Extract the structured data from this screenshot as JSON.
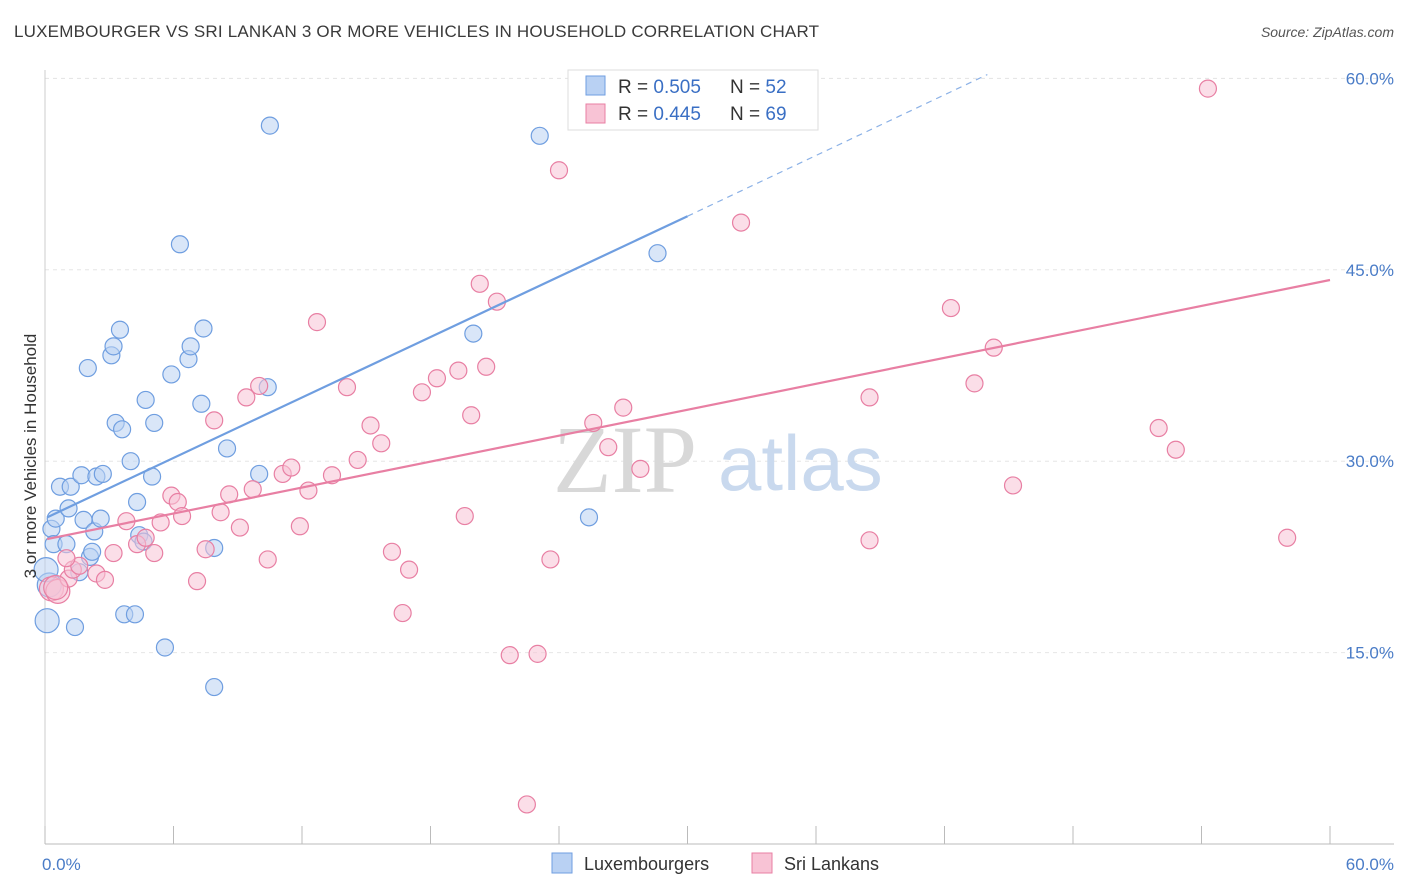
{
  "header": {
    "title": "LUXEMBOURGER VS SRI LANKAN 3 OR MORE VEHICLES IN HOUSEHOLD CORRELATION CHART",
    "source": "Source: ZipAtlas.com"
  },
  "watermark": {
    "zip": "ZIP",
    "atlas": "atlas"
  },
  "chart_data": {
    "type": "scatter",
    "title": "LUXEMBOURGER VS SRI LANKAN 3 OR MORE VEHICLES IN HOUSEHOLD CORRELATION CHART",
    "xlabel": "",
    "ylabel": "3 or more Vehicles in Household",
    "xlim": [
      0,
      60
    ],
    "ylim": [
      0,
      63
    ],
    "x_tick_labels": [
      "0.0%",
      "60.0%"
    ],
    "y_ticks": [
      15,
      30,
      45,
      60
    ],
    "y_tick_labels": [
      "15.0%",
      "30.0%",
      "45.0%",
      "60.0%"
    ],
    "grid": true,
    "legend_position": "bottom-center",
    "stats_box": [
      {
        "r_label": "R = ",
        "r_value": "0.505",
        "n_label": "N = ",
        "n_value": "52"
      },
      {
        "r_label": "R = ",
        "r_value": "0.445",
        "n_label": "N = ",
        "n_value": "69"
      }
    ],
    "series": [
      {
        "name": "Luxembourgers",
        "color": "#6f9ee0",
        "fill": "#b9d1f3",
        "trend": {
          "x0": 0.1,
          "y0": 25.6,
          "x1": 30.0,
          "y1": 49.2,
          "dash_to_x": 44.0,
          "dash_to_y": 60.3
        },
        "points": [
          [
            0.1,
            17.5
          ],
          [
            0.2,
            20.3
          ],
          [
            0.3,
            24.7
          ],
          [
            0.4,
            23.5
          ],
          [
            0.5,
            25.5
          ],
          [
            0.7,
            28.0
          ],
          [
            1.0,
            23.5
          ],
          [
            1.1,
            26.3
          ],
          [
            1.2,
            28.0
          ],
          [
            1.4,
            17.0
          ],
          [
            1.6,
            21.3
          ],
          [
            1.7,
            28.9
          ],
          [
            1.8,
            25.4
          ],
          [
            2.0,
            37.3
          ],
          [
            2.1,
            22.5
          ],
          [
            2.2,
            22.9
          ],
          [
            2.3,
            24.5
          ],
          [
            2.4,
            28.8
          ],
          [
            2.6,
            25.5
          ],
          [
            2.7,
            29.0
          ],
          [
            3.1,
            38.3
          ],
          [
            3.2,
            39.0
          ],
          [
            3.3,
            33.0
          ],
          [
            3.5,
            40.3
          ],
          [
            3.6,
            32.5
          ],
          [
            3.7,
            18.0
          ],
          [
            4.0,
            30.0
          ],
          [
            4.2,
            18.0
          ],
          [
            4.3,
            26.8
          ],
          [
            4.4,
            24.2
          ],
          [
            4.6,
            23.7
          ],
          [
            4.7,
            34.8
          ],
          [
            5.0,
            28.8
          ],
          [
            5.1,
            33.0
          ],
          [
            5.6,
            15.4
          ],
          [
            5.9,
            36.8
          ],
          [
            6.3,
            47.0
          ],
          [
            6.7,
            38.0
          ],
          [
            6.8,
            39.0
          ],
          [
            7.3,
            34.5
          ],
          [
            7.4,
            40.4
          ],
          [
            7.9,
            23.2
          ],
          [
            7.9,
            12.3
          ],
          [
            8.5,
            31.0
          ],
          [
            10.0,
            29.0
          ],
          [
            10.4,
            35.8
          ],
          [
            10.5,
            56.3
          ],
          [
            20.0,
            40.0
          ],
          [
            23.1,
            55.5
          ],
          [
            25.4,
            25.6
          ],
          [
            28.6,
            46.3
          ],
          [
            0.05,
            21.5
          ]
        ]
      },
      {
        "name": "Sri Lankans",
        "color": "#e87fa3",
        "fill": "#f8c3d5",
        "trend": {
          "x0": 0.1,
          "y0": 23.9,
          "x1": 60.0,
          "y1": 44.2
        },
        "points": [
          [
            0.3,
            20.0
          ],
          [
            0.6,
            19.8
          ],
          [
            1.1,
            20.8
          ],
          [
            1.3,
            21.5
          ],
          [
            1.6,
            21.8
          ],
          [
            2.4,
            21.2
          ],
          [
            2.8,
            20.7
          ],
          [
            3.2,
            22.8
          ],
          [
            3.8,
            25.3
          ],
          [
            4.3,
            23.5
          ],
          [
            4.7,
            24.0
          ],
          [
            5.1,
            22.8
          ],
          [
            5.4,
            25.2
          ],
          [
            5.9,
            27.3
          ],
          [
            6.2,
            26.8
          ],
          [
            6.4,
            25.7
          ],
          [
            7.1,
            20.6
          ],
          [
            7.5,
            23.1
          ],
          [
            7.9,
            33.2
          ],
          [
            8.2,
            26.0
          ],
          [
            8.6,
            27.4
          ],
          [
            9.1,
            24.8
          ],
          [
            9.4,
            35.0
          ],
          [
            9.7,
            27.8
          ],
          [
            10.0,
            35.9
          ],
          [
            10.4,
            22.3
          ],
          [
            11.1,
            29.0
          ],
          [
            11.5,
            29.5
          ],
          [
            11.9,
            24.9
          ],
          [
            12.3,
            27.7
          ],
          [
            12.7,
            40.9
          ],
          [
            13.4,
            28.9
          ],
          [
            14.1,
            35.8
          ],
          [
            14.6,
            30.1
          ],
          [
            15.2,
            32.8
          ],
          [
            15.7,
            31.4
          ],
          [
            16.2,
            22.9
          ],
          [
            16.7,
            18.1
          ],
          [
            17.0,
            21.5
          ],
          [
            17.6,
            35.4
          ],
          [
            18.3,
            36.5
          ],
          [
            19.3,
            37.1
          ],
          [
            19.6,
            25.7
          ],
          [
            19.9,
            33.6
          ],
          [
            20.3,
            43.9
          ],
          [
            20.6,
            37.4
          ],
          [
            21.1,
            42.5
          ],
          [
            21.7,
            14.8
          ],
          [
            22.5,
            3.1
          ],
          [
            23.0,
            14.9
          ],
          [
            23.6,
            22.3
          ],
          [
            24.0,
            52.8
          ],
          [
            25.6,
            33.0
          ],
          [
            26.3,
            31.1
          ],
          [
            27.0,
            34.2
          ],
          [
            27.8,
            29.4
          ],
          [
            32.5,
            48.7
          ],
          [
            38.5,
            23.8
          ],
          [
            38.5,
            35.0
          ],
          [
            42.3,
            42.0
          ],
          [
            43.4,
            36.1
          ],
          [
            44.3,
            38.9
          ],
          [
            45.2,
            28.1
          ],
          [
            52.0,
            32.6
          ],
          [
            52.8,
            30.9
          ],
          [
            54.3,
            59.2
          ],
          [
            58.0,
            24.0
          ],
          [
            0.5,
            20.1
          ],
          [
            1.0,
            22.4
          ]
        ]
      }
    ]
  }
}
